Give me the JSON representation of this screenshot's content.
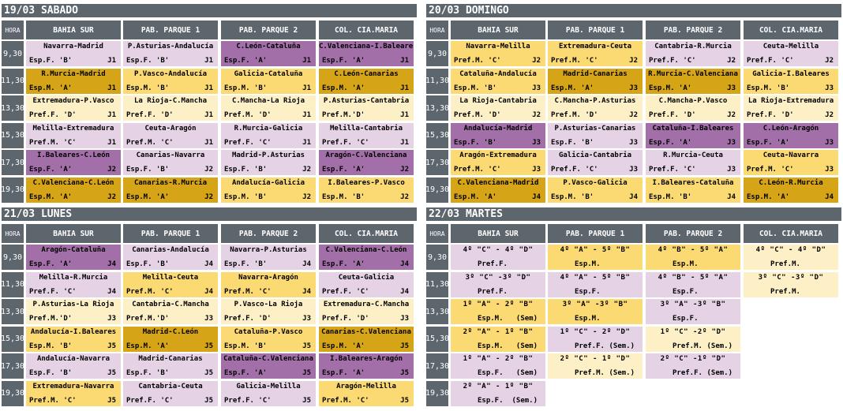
{
  "header_labels": {
    "hora": "HORA",
    "col1": "BAHIA SUR",
    "col2": "PAB. PARQUE 1",
    "col3": "PAB. PARQUE 2",
    "col4": "COL. CIA.MARIA"
  },
  "times": [
    "9,30",
    "11,30",
    "13,30",
    "15,30",
    "17,30",
    "19,30"
  ],
  "colors": {
    "header": "#5d666d",
    "light_purple": "#e5d3e5",
    "purple": "#a26fa8",
    "gold": "#d6a417",
    "yellow": "#fbda73",
    "cream": "#fdf0c6"
  },
  "days": [
    {
      "title": "19/03 SABADO",
      "rows": [
        [
          {
            "m": "Navarra-Madrid",
            "c": "Esp.F. 'B'",
            "j": "J1",
            "k": "lp"
          },
          {
            "m": "P.Asturias-Andalucía",
            "c": "Esp.F. 'B'",
            "j": "J1",
            "k": "lp"
          },
          {
            "m": "C.León-Cataluña",
            "c": "Esp.F. 'A'",
            "j": "J1",
            "k": "pu"
          },
          {
            "m": "C.Valenciana-I.Baleares",
            "c": "Esp.F. 'A'",
            "j": "J1",
            "k": "pu"
          }
        ],
        [
          {
            "m": "R.Murcia-Madrid",
            "c": "Esp.M. 'A'",
            "j": "J1",
            "k": "go"
          },
          {
            "m": "P.Vasco-Andalucía",
            "c": "Esp.M. 'B'",
            "j": "J1",
            "k": "ye"
          },
          {
            "m": "Galicia-Cataluña",
            "c": "Esp.M. 'B'",
            "j": "J1",
            "k": "ye"
          },
          {
            "m": "C.León-Canarias",
            "c": "Esp.M. 'A'",
            "j": "J1",
            "k": "go"
          }
        ],
        [
          {
            "m": "Extremadura-P.Vasco",
            "c": "Pref.F. 'D'",
            "j": "J1",
            "k": "cr"
          },
          {
            "m": "La Rioja-C.Mancha",
            "c": "Pref.F. 'D'",
            "j": "J1",
            "k": "cr"
          },
          {
            "m": "C.Mancha-La Rioja",
            "c": "Pref.M. 'D'",
            "j": "J1",
            "k": "cr"
          },
          {
            "m": "P.Asturias-Cantabria",
            "c": "Pref.M.'D'",
            "j": "J1",
            "k": "cr"
          }
        ],
        [
          {
            "m": "Melilla-Extremadura",
            "c": "Pref.M. 'C'",
            "j": "J1",
            "k": "lp"
          },
          {
            "m": "Ceuta-Aragón",
            "c": "Pref.M. 'C'",
            "j": "J1",
            "k": "lp"
          },
          {
            "m": "R.Murcia-Galicia",
            "c": "Pref.F. 'C'",
            "j": "J1",
            "k": "lp"
          },
          {
            "m": "Melilla-Cantabria",
            "c": "Pref.F. 'C'",
            "j": "J1",
            "k": "lp"
          }
        ],
        [
          {
            "m": "I.Baleares-C.León",
            "c": "Esp.F. 'A'",
            "j": "J2",
            "k": "pu"
          },
          {
            "m": "Canarias-Navarra",
            "c": "Esp.F. 'B'",
            "j": "J2",
            "k": "lp"
          },
          {
            "m": "Madrid-P.Asturias",
            "c": "Esp.F. 'B'",
            "j": "J2",
            "k": "lp"
          },
          {
            "m": "Aragón-C.Valenciana",
            "c": "Esp.F. 'A'",
            "j": "J2",
            "k": "pu"
          }
        ],
        [
          {
            "m": "C.Valenciana-C.León",
            "c": "Esp.M. 'A'",
            "j": "J2",
            "k": "go"
          },
          {
            "m": "Canarias-R.Murcia",
            "c": "Esp.M. 'A'",
            "j": "J2",
            "k": "go"
          },
          {
            "m": "Andalucía-Galicia",
            "c": "Esp.M. 'B'",
            "j": "J2",
            "k": "ye"
          },
          {
            "m": "I.Baleares-P.Vasco",
            "c": "Esp.M. 'B'",
            "j": "J2",
            "k": "ye"
          }
        ]
      ]
    },
    {
      "title": "20/03 DOMINGO",
      "rows": [
        [
          {
            "m": "Navarra-Melilla",
            "c": "Pref.M. 'C'",
            "j": "J2",
            "k": "ye"
          },
          {
            "m": "Extremadura-Ceuta",
            "c": "Pref.M. 'C'",
            "j": "J2",
            "k": "ye"
          },
          {
            "m": "Cantabria-R.Murcia",
            "c": "Pref.F. 'C'",
            "j": "J2",
            "k": "lp"
          },
          {
            "m": "Ceuta-Melilla",
            "c": "Pref.F. 'C'",
            "j": "J2",
            "k": "lp"
          }
        ],
        [
          {
            "m": "Cataluña-Andalucía",
            "c": "Esp.M. 'B'",
            "j": "J3",
            "k": "ye"
          },
          {
            "m": "Madrid-Canarias",
            "c": "Esp.M. 'A'",
            "j": "J3",
            "k": "go"
          },
          {
            "m": "R.Murcia-C.Valenciana",
            "c": "Esp.M. 'A'",
            "j": "J3",
            "k": "go"
          },
          {
            "m": "Galicia-I.Baleares",
            "c": "Esp.M. 'B'",
            "j": "J3",
            "k": "ye"
          }
        ],
        [
          {
            "m": "La Rioja-Cantabria",
            "c": "Pref.M. 'D'",
            "j": "J2",
            "k": "cr"
          },
          {
            "m": "C.Mancha-P.Asturias",
            "c": "Pref.M. 'D'",
            "j": "J2",
            "k": "cr"
          },
          {
            "m": "C.Mancha-P.Vasco",
            "c": "Pref.F. 'D'",
            "j": "J2",
            "k": "cr"
          },
          {
            "m": "La Rioja-Extremadura",
            "c": "Pref.F. 'D'",
            "j": "J2",
            "k": "cr"
          }
        ],
        [
          {
            "m": "Andalucía-Madrid",
            "c": "Esp.F. 'B'",
            "j": "J3",
            "k": "pu"
          },
          {
            "m": "P.Asturias-Canarias",
            "c": "Esp.F. 'B'",
            "j": "J3",
            "k": "lp"
          },
          {
            "m": "Cataluña-I.Baleares",
            "c": "Esp.F. 'A'",
            "j": "J3",
            "k": "pu"
          },
          {
            "m": "C.León-Aragón",
            "c": "Esp.F. 'A'",
            "j": "J3",
            "k": "pu"
          }
        ],
        [
          {
            "m": "Aragón-Extremadura",
            "c": "Pref.M. 'C'",
            "j": "J3",
            "k": "ye"
          },
          {
            "m": "Galicia-Cantabria",
            "c": "Pref.F. 'C'",
            "j": "J3",
            "k": "lp"
          },
          {
            "m": "R.Murcia-Ceuta",
            "c": "Pref.F. 'C'",
            "j": "J3",
            "k": "lp"
          },
          {
            "m": "Ceuta-Navarra",
            "c": "Pref.M. 'C'",
            "j": "J3",
            "k": "ye"
          }
        ],
        [
          {
            "m": "C.Valenciana-Madrid",
            "c": "Esp.M. 'A'",
            "j": "J4",
            "k": "go"
          },
          {
            "m": "P.Vasco-Galicia",
            "c": "Esp.M. 'B'",
            "j": "J4",
            "k": "ye"
          },
          {
            "m": "I.Baleares-Cataluña",
            "c": "Esp.M. 'B'",
            "j": "J4",
            "k": "ye"
          },
          {
            "m": "C.León-R.Murcia",
            "c": "Esp.M. 'A'",
            "j": "J4",
            "k": "go"
          }
        ]
      ]
    },
    {
      "title": "21/03 LUNES",
      "rows": [
        [
          {
            "m": "Aragón-Cataluña",
            "c": "Esp.F. 'A'",
            "j": "J4",
            "k": "pu"
          },
          {
            "m": "Canarias-Andalucía",
            "c": "Esp.F. 'B'",
            "j": "J4",
            "k": "lp"
          },
          {
            "m": "Navarra-P.Asturias",
            "c": "Esp.F. 'B'",
            "j": "J4",
            "k": "lp"
          },
          {
            "m": "C.Valenciana-C.León",
            "c": "Esp.F. 'A'",
            "j": "J4",
            "k": "pu"
          }
        ],
        [
          {
            "m": "Melilla-R.Murcia",
            "c": "Pref.F. 'C'",
            "j": "J4",
            "k": "lp"
          },
          {
            "m": "Melilla-Ceuta",
            "c": "Pref.M. 'C'",
            "j": "J4",
            "k": "ye"
          },
          {
            "m": "Navarra-Aragón",
            "c": "Pref.M. 'C'",
            "j": "J4",
            "k": "ye"
          },
          {
            "m": "Ceuta-Galicia",
            "c": "Pref.F. 'C'",
            "j": "J4",
            "k": "lp"
          }
        ],
        [
          {
            "m": "P.Asturias-La Rioja",
            "c": "Pref.M.'D'",
            "j": "J3",
            "k": "cr"
          },
          {
            "m": "Cantabria-C.Mancha",
            "c": "Pref.M.'D'",
            "j": "J3",
            "k": "cr"
          },
          {
            "m": "P.Vasco-La Rioja",
            "c": "Pref.F. 'D'",
            "j": "J3",
            "k": "cr"
          },
          {
            "m": "Extremadura-C.Mancha",
            "c": "Pref.F. 'D'",
            "j": "J3",
            "k": "cr"
          }
        ],
        [
          {
            "m": "Andalucía-I.Baleares",
            "c": "Esp.M. 'B'",
            "j": "J5",
            "k": "ye"
          },
          {
            "m": "Madrid-C.León",
            "c": "Esp.M. 'A'",
            "j": "J5",
            "k": "go"
          },
          {
            "m": "Cataluña-P.Vasco",
            "c": "Esp.M. 'B'",
            "j": "J5",
            "k": "ye"
          },
          {
            "m": "Canarias-C.Valenciana",
            "c": "Esp.M. 'A'",
            "j": "J5",
            "k": "go"
          }
        ],
        [
          {
            "m": "Andalucía-Navarra",
            "c": "Esp.F. 'B'",
            "j": "J5",
            "k": "lp"
          },
          {
            "m": "Madrid-Canarias",
            "c": "Esp.F. 'B'",
            "j": "J5",
            "k": "lp"
          },
          {
            "m": "Cataluña-C.Valenciana",
            "c": "Esp.F. 'A'",
            "j": "J5",
            "k": "pu"
          },
          {
            "m": "I.Baleares-Aragón",
            "c": "Esp.F. 'A'",
            "j": "J5",
            "k": "pu"
          }
        ],
        [
          {
            "m": "Extremadura-Navarra",
            "c": "Pref.M. 'C'",
            "j": "J5",
            "k": "ye"
          },
          {
            "m": "Cantabria-Ceuta",
            "c": "Pref.F. 'C'",
            "j": "J5",
            "k": "lp"
          },
          {
            "m": "Galicia-Melilla",
            "c": "Pref.F. 'C'",
            "j": "J5",
            "k": "lp"
          },
          {
            "m": "Aragón-Melilla",
            "c": "Pref.M. 'C'",
            "j": "J5",
            "k": "ye"
          }
        ]
      ]
    },
    {
      "title": "22/03 MARTES",
      "rows": [
        [
          {
            "m": "4º \"C\" - 4º \"D\"",
            "c": "Pref.F.",
            "j": "",
            "k": "lp",
            "g": true
          },
          {
            "m": "4º \"A\" - 5º \"B\"",
            "c": "Esp.M.",
            "j": "",
            "k": "ye",
            "g": true
          },
          {
            "m": "4º \"B\" - 5º \"A\"",
            "c": "Esp.M.",
            "j": "",
            "k": "ye",
            "g": true
          },
          {
            "m": "4º \"C\" - 4º \"D\"",
            "c": "Pref.M.",
            "j": "",
            "k": "cr",
            "g": true
          }
        ],
        [
          {
            "m": "3º \"C\" -3º \"D\"",
            "c": "Pref.F.",
            "j": "",
            "k": "lp",
            "g": true
          },
          {
            "m": "4º \"A\" - 5º \"B\"",
            "c": "Esp.F.",
            "j": "",
            "k": "lp",
            "g": true
          },
          {
            "m": "4º \"B\" - 5º \"A\"",
            "c": "Esp.F.",
            "j": "",
            "k": "lp",
            "g": true
          },
          {
            "m": "3º \"C\" -3º \"D\"",
            "c": "Pref.M.",
            "j": "",
            "k": "cr",
            "g": true
          }
        ],
        [
          {
            "m": "1º \"A\" - 2º \"B\"",
            "c": "Esp.M.",
            "j": "(Sem)",
            "k": "ye",
            "g": true
          },
          {
            "m": "3º \"A\" -3º \"B\"",
            "c": "Esp.M.",
            "j": "",
            "k": "ye",
            "g": true
          },
          {
            "m": "3º \"A\" -3º \"B\"",
            "c": "Esp.F.",
            "j": "",
            "k": "lp",
            "g": true
          },
          null
        ],
        [
          {
            "m": "2º \"A\" - 1º \"B\"",
            "c": "Esp.M.",
            "j": "(Sem)",
            "k": "ye",
            "g": true
          },
          {
            "m": "1º \"C\" - 2º \"D\"",
            "c": "Pref.F.",
            "j": "(Sem.)",
            "k": "lp",
            "g": true
          },
          {
            "m": "1º \"C\" -2º \"D\"",
            "c": "Pref.M.",
            "j": "(Sem.)",
            "k": "cr",
            "g": true
          },
          null
        ],
        [
          {
            "m": "1º \"A\" - 2º \"B\"",
            "c": "Esp.F.",
            "j": "(Sem)",
            "k": "lp",
            "g": true
          },
          {
            "m": "2º \"C\" - 1º \"D\"",
            "c": "Pref.M.",
            "j": "(Sem.)",
            "k": "cr",
            "g": true
          },
          {
            "m": "2º \"C\" -1º \"D\"",
            "c": "Pref.F.",
            "j": "(Sem.)",
            "k": "lp",
            "g": true
          },
          null
        ],
        [
          {
            "m": "2º \"A\" - 1º \"B\"",
            "c": "Esp.F.",
            "j": "(Sem.)",
            "k": "lp",
            "g": true
          },
          null,
          null,
          null
        ]
      ]
    }
  ]
}
